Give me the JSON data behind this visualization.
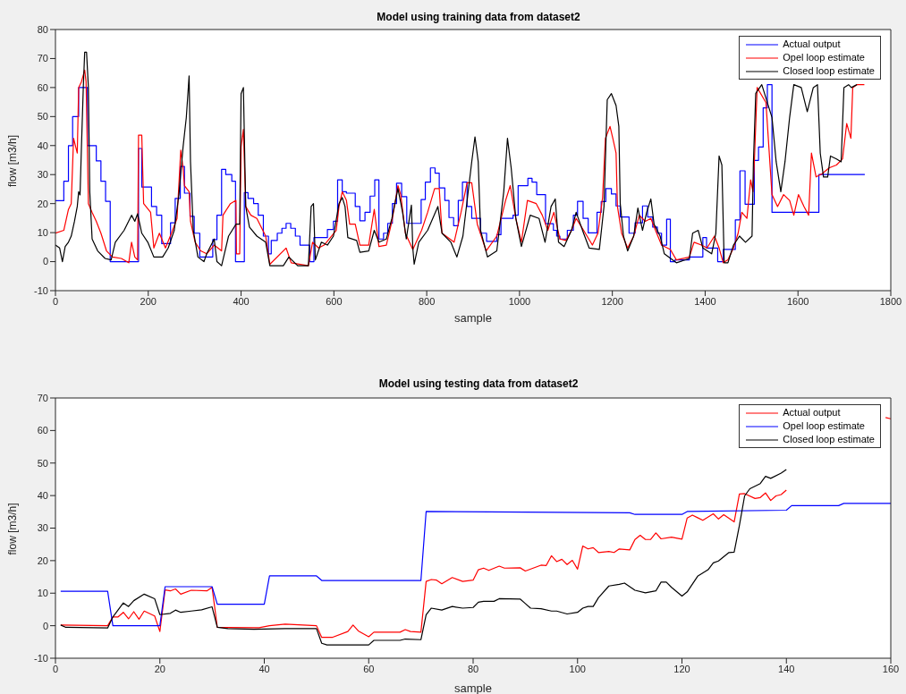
{
  "chart_data": [
    {
      "type": "line",
      "title": "Model using training data from dataset2",
      "xlabel": "sample",
      "ylabel": "flow [m3/h]",
      "xlim": [
        0,
        1800
      ],
      "xticks": [
        0,
        200,
        400,
        600,
        800,
        1000,
        1200,
        1400,
        1600,
        1800
      ],
      "ylim": [
        -10,
        80
      ],
      "yticks": [
        -10,
        0,
        10,
        20,
        30,
        40,
        50,
        60,
        70,
        80
      ],
      "legend": "top right",
      "series": [
        {
          "name": "Actual output",
          "color": "#0000ff",
          "type": "step",
          "x": [
            0,
            18,
            28,
            37,
            50,
            69,
            88,
            98,
            108,
            118,
            179,
            186,
            207,
            218,
            229,
            248,
            258,
            269,
            278,
            290,
            299,
            311,
            339,
            348,
            358,
            367,
            380,
            388,
            407,
            415,
            427,
            437,
            448,
            459,
            465,
            478,
            488,
            497,
            507,
            517,
            527,
            548,
            557,
            586,
            599,
            608,
            618,
            627,
            646,
            656,
            667,
            678,
            688,
            697,
            707,
            716,
            726,
            735,
            746,
            757,
            788,
            797,
            808,
            818,
            827,
            839,
            848,
            858,
            868,
            877,
            887,
            897,
            916,
            929,
            951,
            960,
            986,
            997,
            1018,
            1027,
            1037,
            1056,
            1073,
            1080,
            1087,
            1103,
            1116,
            1125,
            1137,
            1148,
            1167,
            1176,
            1186,
            1198,
            1208,
            1217,
            1236,
            1249,
            1265,
            1276,
            1287,
            1297,
            1306,
            1317,
            1325,
            1335,
            1366,
            1395,
            1403,
            1427,
            1439,
            1465,
            1475,
            1486,
            1506,
            1515,
            1525,
            1534,
            1544,
            1645,
            1744
          ],
          "values": [
            21,
            27.7,
            40,
            50,
            60,
            40,
            34.7,
            27.7,
            20.8,
            0,
            39,
            25.7,
            19,
            16,
            6.2,
            13.4,
            21.8,
            32.8,
            23.6,
            15.6,
            9.8,
            1.6,
            7.6,
            16,
            31.8,
            30,
            27.7,
            0,
            23.8,
            21.8,
            20,
            16,
            8.8,
            2.7,
            7.3,
            9.8,
            11.5,
            13.2,
            11.5,
            8.8,
            5.7,
            0,
            8.3,
            11.1,
            13.9,
            28.2,
            24.1,
            23.6,
            19,
            14.1,
            17,
            22.6,
            28.2,
            7.8,
            9.8,
            13.2,
            20,
            27,
            22.4,
            13.2,
            21.4,
            27.4,
            32.3,
            30.5,
            25.4,
            21.1,
            15.2,
            12.4,
            21.1,
            27.4,
            19,
            14.9,
            9.8,
            7,
            9.3,
            14.9,
            16,
            26.2,
            28.7,
            27.4,
            23.1,
            13.1,
            10.8,
            8.8,
            7.8,
            10.8,
            16,
            20.8,
            14.9,
            9.9,
            17,
            20.7,
            25.2,
            23.3,
            19.2,
            15.4,
            9.8,
            13.4,
            19.2,
            15.4,
            11.9,
            9.8,
            5.7,
            14.6,
            0,
            0.6,
            1.6,
            8.3,
            4.7,
            0,
            4.2,
            14.4,
            31.3,
            19.8,
            34.9,
            39.5,
            53,
            61,
            17,
            30,
            30
          ]
        },
        {
          "name": "Opel loop estimate",
          "color": "#ff0000",
          "type": "line",
          "x": [
            0,
            18,
            28,
            34,
            39,
            47,
            50,
            56,
            63,
            66,
            71,
            79,
            88,
            98,
            110,
            123,
            142,
            158,
            164,
            171,
            177,
            179,
            186,
            190,
            205,
            212,
            224,
            237,
            250,
            262,
            270,
            275,
            278,
            288,
            291,
            301,
            313,
            326,
            342,
            358,
            361,
            377,
            389,
            390,
            397,
            400,
            405,
            410,
            421,
            434,
            453,
            462,
            497,
            508,
            545,
            554,
            567,
            579,
            605,
            611,
            618,
            627,
            634,
            646,
            656,
            675,
            687,
            697,
            713,
            725,
            738,
            744,
            754,
            770,
            789,
            802,
            817,
            827,
            833,
            859,
            874,
            887,
            897,
            909,
            928,
            951,
            970,
            980,
            992,
            1004,
            1017,
            1036,
            1049,
            1061,
            1074,
            1087,
            1100,
            1112,
            1122,
            1138,
            1157,
            1169,
            1179,
            1185,
            1195,
            1201,
            1208,
            1211,
            1220,
            1233,
            1246,
            1258,
            1271,
            1283,
            1293,
            1306,
            1325,
            1338,
            1366,
            1376,
            1392,
            1404,
            1420,
            1430,
            1439,
            1449,
            1461,
            1471,
            1479,
            1490,
            1498,
            1503,
            1506,
            1512,
            1531,
            1544,
            1556,
            1569,
            1582,
            1591,
            1601,
            1613,
            1623,
            1629,
            1639,
            1652,
            1667,
            1683,
            1696,
            1705,
            1714,
            1718,
            1727,
            1743
          ],
          "values": [
            9.8,
            10.8,
            18,
            20,
            42.5,
            37.4,
            60,
            62,
            66,
            62,
            20,
            17,
            13.9,
            9.8,
            3.7,
            1.6,
            1.1,
            -0.4,
            6.7,
            1.6,
            0.6,
            43.6,
            43.6,
            20,
            17,
            4.7,
            9.8,
            4.7,
            9.8,
            14.9,
            38.4,
            32.3,
            26.2,
            24.1,
            13.9,
            6.7,
            3.7,
            2.7,
            5.7,
            3.7,
            16,
            20,
            21.1,
            2.7,
            2.7,
            39.5,
            45.6,
            19,
            16,
            14.9,
            8.8,
            -0.9,
            4.7,
            -0.4,
            -1.4,
            6.7,
            4.7,
            5.7,
            10.8,
            19,
            24.1,
            21.1,
            12.9,
            12.9,
            5.7,
            5.7,
            18,
            5.2,
            5.7,
            13.9,
            26.2,
            23.1,
            9.8,
            4.2,
            10.8,
            17,
            25.2,
            25.2,
            9.8,
            6.7,
            17,
            27.2,
            27.2,
            12.9,
            3.7,
            8.8,
            21.1,
            26.2,
            14.9,
            6.7,
            21.1,
            20,
            16,
            10.8,
            17,
            7.8,
            7.3,
            10.8,
            14.9,
            10.8,
            5.7,
            9.8,
            22.1,
            42.5,
            46.6,
            42.5,
            37.4,
            19,
            9.8,
            4.7,
            8.8,
            16,
            13.9,
            14.9,
            10.8,
            5.7,
            4.2,
            0.6,
            1.6,
            6.7,
            5.7,
            4.7,
            8.8,
            4.7,
            -0.4,
            0.6,
            4.7,
            9.8,
            17,
            14.9,
            28.2,
            24.1,
            34.4,
            60,
            54.8,
            23.1,
            19,
            23.1,
            21.1,
            16,
            23.1,
            19,
            16,
            37.4,
            29.2,
            30.3,
            32.3,
            33.3,
            35.4,
            47.6,
            42.5,
            60,
            61,
            61
          ]
        },
        {
          "name": "Closed loop estimate",
          "color": "#000000",
          "type": "line",
          "x": [
            0,
            9,
            15,
            21,
            28,
            34,
            41,
            47,
            50,
            53,
            56,
            60,
            63,
            67,
            71,
            74,
            79,
            91,
            107,
            120,
            129,
            148,
            164,
            171,
            177,
            186,
            199,
            212,
            231,
            243,
            256,
            266,
            275,
            282,
            288,
            291,
            297,
            307,
            320,
            326,
            342,
            348,
            358,
            364,
            373,
            389,
            397,
            400,
            405,
            410,
            418,
            434,
            453,
            462,
            491,
            503,
            522,
            545,
            551,
            556,
            560,
            573,
            586,
            599,
            611,
            618,
            624,
            630,
            649,
            656,
            675,
            687,
            697,
            713,
            725,
            738,
            748,
            756,
            767,
            770,
            773,
            783,
            802,
            824,
            833,
            852,
            865,
            878,
            897,
            904,
            911,
            916,
            931,
            951,
            966,
            974,
            982,
            992,
            1004,
            1023,
            1042,
            1055,
            1068,
            1077,
            1084,
            1096,
            1112,
            1122,
            1138,
            1150,
            1172,
            1182,
            1189,
            1198,
            1208,
            1214,
            1217,
            1224,
            1233,
            1246,
            1255,
            1265,
            1274,
            1283,
            1290,
            1303,
            1312,
            1338,
            1366,
            1373,
            1385,
            1395,
            1414,
            1423,
            1430,
            1436,
            1441,
            1449,
            1461,
            1474,
            1487,
            1501,
            1504,
            1509,
            1522,
            1544,
            1553,
            1563,
            1572,
            1582,
            1591,
            1607,
            1620,
            1633,
            1642,
            1648,
            1655,
            1664,
            1670,
            1683,
            1693,
            1699,
            1709,
            1715,
            1727
          ],
          "values": [
            5.7,
            4.7,
            0,
            5.2,
            6.7,
            8.8,
            13.9,
            19,
            24.1,
            23,
            39.5,
            60,
            72.2,
            72.2,
            60,
            24,
            7.8,
            3.7,
            1.1,
            0.6,
            6.7,
            10.8,
            16,
            13.9,
            16.5,
            9.8,
            6.7,
            1.6,
            1.6,
            4.7,
            10.8,
            23.1,
            39.5,
            49.7,
            64,
            34.4,
            10.8,
            1.6,
            0,
            2.7,
            7.8,
            0,
            -1.4,
            2.7,
            8.8,
            12.9,
            12.9,
            57.9,
            60,
            19,
            11.9,
            8.8,
            6.7,
            -1.4,
            -1.4,
            1.6,
            -1.4,
            -1.4,
            19,
            20,
            0.6,
            6.7,
            5.7,
            8.8,
            20,
            22.1,
            19,
            8.3,
            7.3,
            3.2,
            3.7,
            10.8,
            6.7,
            7.8,
            14.9,
            25.2,
            17,
            7.8,
            19.5,
            4.7,
            -0.9,
            6.7,
            10.8,
            19,
            9.8,
            6.7,
            1.6,
            8.8,
            34.4,
            43,
            34.4,
            10.8,
            1.6,
            3.7,
            24.1,
            42.5,
            32.3,
            14.9,
            5.2,
            16,
            14.9,
            6.7,
            19,
            21.6,
            6.7,
            5.2,
            10.8,
            17,
            9.8,
            4.7,
            4.2,
            19,
            55.8,
            57.9,
            53.8,
            46.6,
            20,
            8.8,
            3.7,
            8.8,
            18.5,
            10.8,
            17,
            21.6,
            12.9,
            8.8,
            2.7,
            -0.4,
            1.1,
            9.8,
            10.8,
            4.7,
            2.7,
            9.8,
            36.4,
            33.3,
            -0.4,
            -0.4,
            5.7,
            8.8,
            6.7,
            8.8,
            34.4,
            58,
            61,
            49.7,
            34.4,
            24.1,
            34.4,
            49.7,
            61,
            60,
            51.7,
            60,
            61,
            37.4,
            29.2,
            29.2,
            36.4,
            35.4,
            34.4,
            60,
            61,
            60,
            61
          ]
        }
      ]
    },
    {
      "type": "line",
      "title": "Model using testing data from dataset2",
      "xlabel": "sample",
      "ylabel": "flow [m3/h]",
      "xlim": [
        0,
        160
      ],
      "xticks": [
        0,
        20,
        40,
        60,
        80,
        100,
        120,
        140,
        160
      ],
      "ylim": [
        -10,
        70
      ],
      "yticks": [
        -10,
        0,
        10,
        20,
        30,
        40,
        50,
        60,
        70
      ],
      "legend": "top right",
      "series": [
        {
          "name": "Actual output",
          "color": "#ff0000",
          "x": [
            1,
            10,
            11,
            12,
            13,
            14,
            15,
            16,
            17,
            19,
            20,
            21,
            22,
            23,
            24,
            26,
            29,
            30,
            31,
            39,
            41,
            44,
            50,
            51,
            53,
            56,
            57,
            58,
            60,
            61,
            66,
            67,
            68,
            70,
            71,
            72,
            73,
            74,
            76,
            78,
            80,
            81,
            82,
            83,
            85,
            86,
            89,
            90,
            93,
            94,
            95,
            96,
            97,
            98,
            99,
            100,
            101,
            102,
            103,
            104,
            106,
            107,
            108,
            110,
            111,
            112,
            113,
            114,
            115,
            116,
            118,
            120,
            121,
            122,
            123,
            124,
            126,
            127,
            128,
            130,
            131,
            132,
            134,
            135,
            136,
            137,
            138,
            139,
            140,
            141,
            159,
            160
          ],
          "values": [
            0.2,
            0,
            2.7,
            2.7,
            4.1,
            2.1,
            4.3,
            2,
            4.5,
            3,
            -1.8,
            11,
            10.7,
            11.3,
            9.7,
            10.9,
            10.7,
            11.8,
            -0.5,
            -0.6,
            0,
            0.5,
            0,
            -3.6,
            -3.6,
            -1.8,
            0.2,
            -1.6,
            -3.4,
            -2,
            -2,
            -1.2,
            -1.8,
            -2,
            13.6,
            14.2,
            14,
            12.9,
            14.8,
            13.6,
            14,
            17.2,
            17.7,
            17,
            18.3,
            17.7,
            17.8,
            16.8,
            18.6,
            18.5,
            21.5,
            19.7,
            20.4,
            18.8,
            20.1,
            17.4,
            24.5,
            23.6,
            24,
            22.5,
            22.8,
            22.5,
            23.6,
            23.3,
            26.5,
            27.8,
            26.5,
            26.5,
            28.5,
            26.7,
            27.2,
            26.6,
            33.1,
            34,
            33.2,
            32.4,
            34.4,
            32.8,
            34.1,
            31.9,
            40.5,
            40.6,
            39.1,
            39.4,
            40.8,
            38.5,
            39.9,
            40.3,
            41.7,
            null,
            64,
            63.6
          ]
        },
        {
          "name": "Opel loop estimate",
          "color": "#0000ff",
          "x": [
            1,
            10,
            11,
            20,
            21,
            30,
            31,
            40,
            41,
            50,
            51,
            70,
            71,
            110,
            111,
            120,
            121,
            140,
            141,
            150,
            151,
            160
          ],
          "values": [
            10.6,
            10.6,
            0,
            0,
            12,
            12,
            6.6,
            6.6,
            15.3,
            15.3,
            13.9,
            13.9,
            35.1,
            34.7,
            34.2,
            34.2,
            35.1,
            35.5,
            36.9,
            36.9,
            37.6,
            37.6
          ]
        },
        {
          "name": "Closed loop estimate",
          "color": "#000000",
          "x": [
            1,
            2,
            10,
            11,
            13,
            14,
            15,
            17,
            19,
            20,
            22,
            23,
            24,
            26,
            28,
            30,
            31,
            33,
            38,
            44,
            50,
            51,
            52,
            60,
            61,
            66,
            67,
            70,
            71,
            72,
            74,
            76,
            78,
            80,
            81,
            82,
            84,
            85,
            89,
            90,
            91,
            93,
            95,
            96,
            98,
            100,
            101,
            102,
            103,
            104,
            106,
            108,
            109,
            111,
            113,
            115,
            116,
            117,
            118,
            120,
            121,
            123,
            125,
            126,
            127,
            129,
            130,
            131,
            132,
            133,
            135,
            136,
            137,
            139,
            140
          ],
          "values": [
            0.2,
            -0.5,
            -0.7,
            2.7,
            7,
            5.9,
            7.7,
            9.7,
            8.3,
            3.4,
            3.8,
            4.8,
            4.1,
            4.5,
            4.9,
            5.8,
            -0.5,
            -0.9,
            -1.1,
            -0.9,
            -0.9,
            -5.4,
            -5.9,
            -5.9,
            -4.5,
            -4.5,
            -4.1,
            -4.3,
            3.4,
            5.4,
            4.8,
            5.9,
            5.4,
            5.6,
            7.2,
            7.5,
            7.5,
            8.3,
            8.2,
            6.8,
            5.4,
            5.2,
            4.5,
            4.5,
            3.6,
            4.1,
            5.4,
            5.9,
            5.9,
            8.6,
            12.2,
            12.7,
            13.1,
            10.9,
            10.1,
            10.7,
            13.4,
            13.4,
            11.8,
            9.1,
            10.4,
            15.2,
            17.2,
            19.3,
            19.9,
            22.5,
            22.6,
            30.8,
            39.9,
            42.1,
            43.7,
            45.9,
            45.3,
            46.9,
            48
          ]
        }
      ]
    }
  ]
}
